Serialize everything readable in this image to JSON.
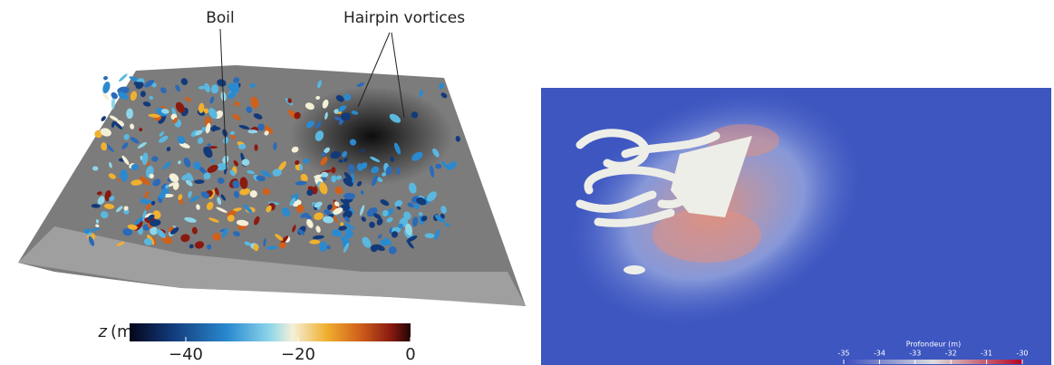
{
  "left_panel": {
    "annotations": [
      "Boil",
      "Hairpin vortices"
    ],
    "colorbar": {
      "label_symbol": "z",
      "label_unit": "(m)",
      "lim": [
        -50,
        0
      ],
      "ticks": [
        {
          "value": -40,
          "label": "−40"
        },
        {
          "value": -20,
          "label": "−20"
        },
        0
      ]
    }
  },
  "right_panel": {
    "colorbar": {
      "label": "Profondeur (m)",
      "lim": [
        -35,
        -30
      ],
      "ticks": [
        -35,
        -34,
        -33,
        -32,
        -31,
        -30
      ]
    }
  }
}
